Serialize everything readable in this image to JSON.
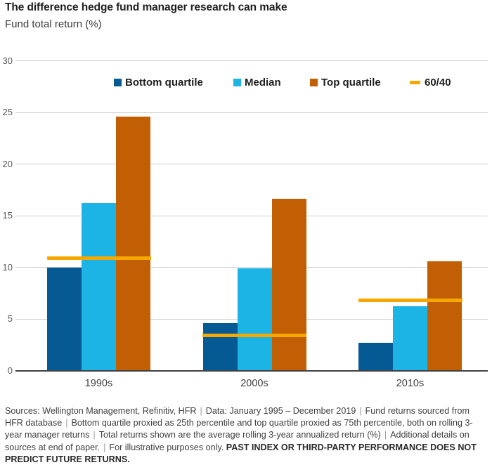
{
  "chart_data": {
    "type": "bar",
    "title": "The difference hedge fund manager research can make",
    "subtitle": "Fund total return (%)",
    "ylabel": "Fund total return (%)",
    "categories": [
      "1990s",
      "2000s",
      "2010s"
    ],
    "series": [
      {
        "name": "Bottom quartile",
        "color": "#055a93",
        "values": [
          10.0,
          4.6,
          2.7
        ]
      },
      {
        "name": "Median",
        "color": "#1cb4e5",
        "values": [
          16.2,
          9.9,
          6.2
        ]
      },
      {
        "name": "Top quartile",
        "color": "#c25e04",
        "values": [
          24.6,
          16.6,
          10.6
        ]
      }
    ],
    "line_series": {
      "name": "60/40",
      "color": "#f7a800",
      "values": [
        10.9,
        3.4,
        6.8
      ]
    },
    "ylim": [
      0,
      30
    ],
    "yticks": [
      0,
      5,
      10,
      15,
      20,
      25,
      30
    ],
    "grid": true,
    "legend_position": "top"
  },
  "footer": {
    "separator": "|",
    "segments": [
      "Sources: Wellington Management, Refinitiv, HFR",
      "Data: January 1995 – December 2019",
      "Fund returns sourced from HFR database",
      "Bottom quartile proxied as 25th percentile and top quartile proxied as 75th percentile, both on rolling 3-year manager returns",
      "Total returns shown are the average rolling 3-year annualized return (%)",
      "Additional details on sources at end of paper."
    ],
    "illustrative": "For illustrative purposes only. ",
    "bold_disclaimer": "PAST INDEX OR THIRD-PARTY PERFORMANCE DOES NOT PREDICT FUTURE RETURNS."
  }
}
